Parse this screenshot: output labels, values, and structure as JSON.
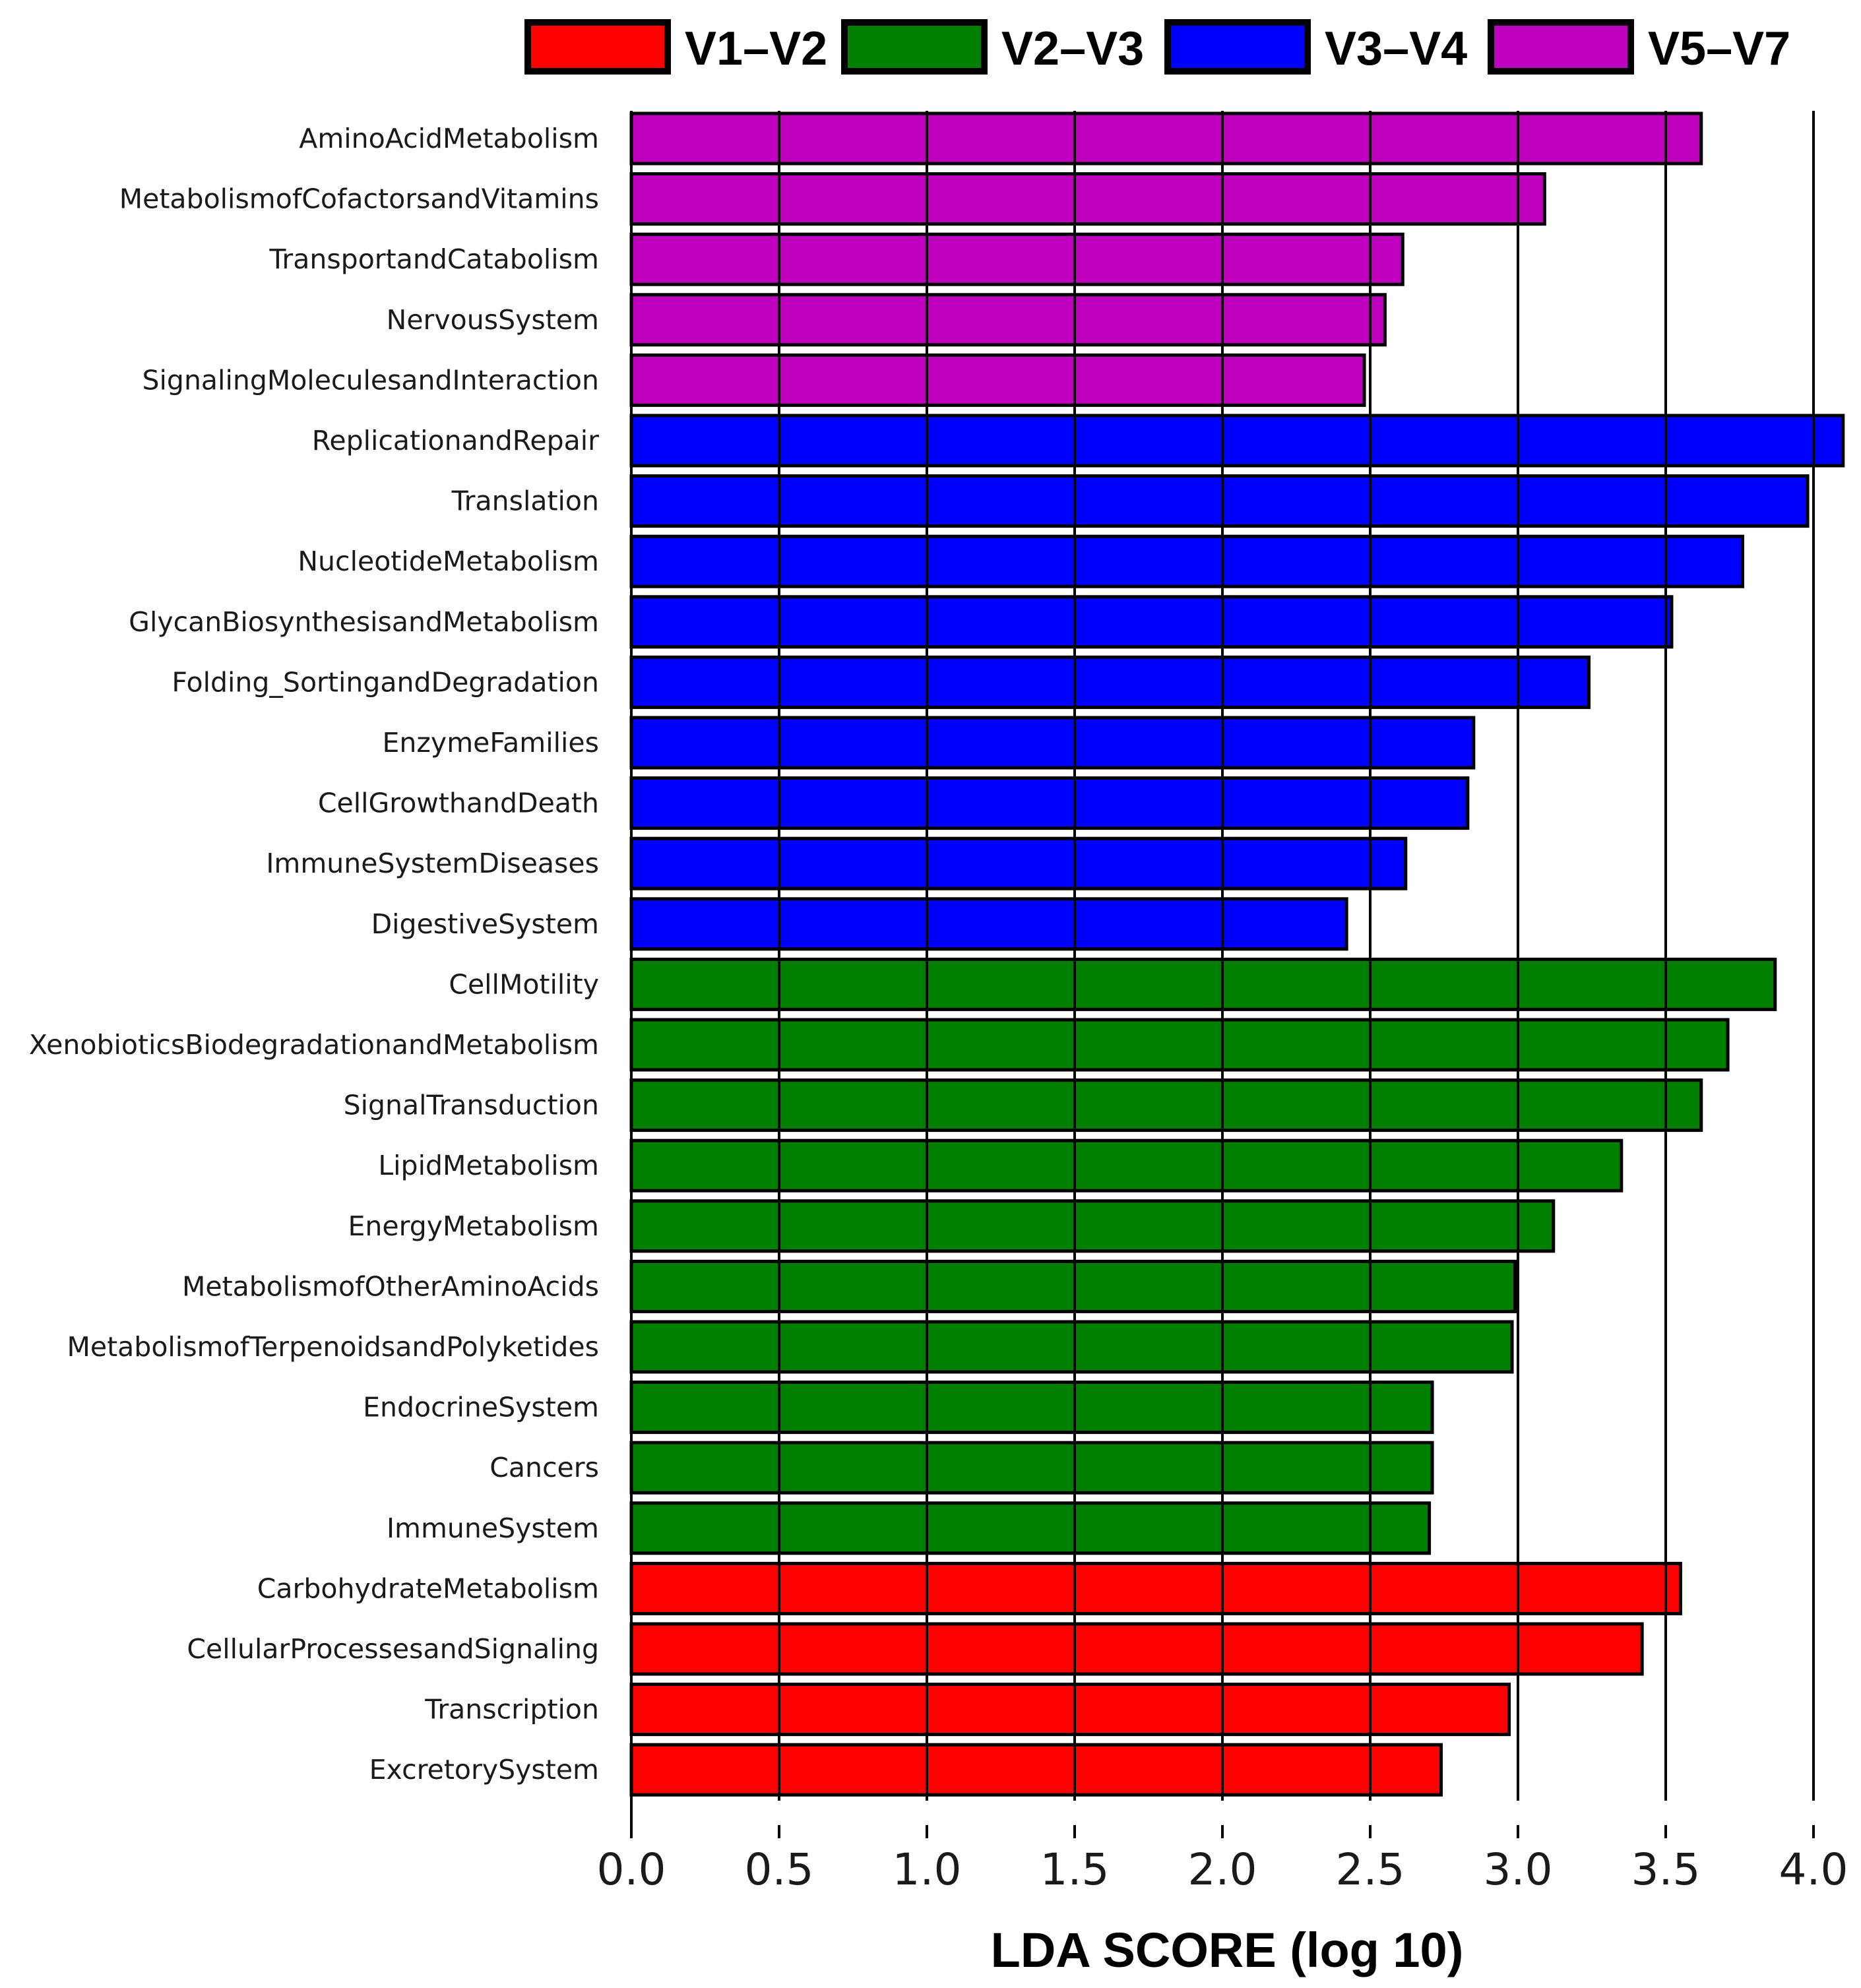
{
  "chart_data": {
    "type": "bar",
    "orientation": "horizontal",
    "title": "",
    "xlabel": "LDA SCORE (log 10)",
    "ylabel": "",
    "xlim": [
      0,
      4.1
    ],
    "xticks": [
      "0.0",
      "0.5",
      "1.0",
      "1.5",
      "2.0",
      "2.5",
      "3.0",
      "3.5",
      "4.0"
    ],
    "grid": "vertical",
    "legend_position": "top",
    "legend": [
      {
        "name": "V1–V2",
        "color": "#ff0000"
      },
      {
        "name": "V2–V3",
        "color": "#007f00"
      },
      {
        "name": "V3–V4",
        "color": "#0000ff"
      },
      {
        "name": "V5–V7",
        "color": "#bf00bf"
      }
    ],
    "bars": [
      {
        "label": "AminoAcidMetabolism",
        "value": 3.62,
        "group": "V5–V7"
      },
      {
        "label": "MetabolismofCofactorsandVitamins",
        "value": 3.09,
        "group": "V5–V7"
      },
      {
        "label": "TransportandCatabolism",
        "value": 2.61,
        "group": "V5–V7"
      },
      {
        "label": "NervousSystem",
        "value": 2.55,
        "group": "V5–V7"
      },
      {
        "label": "SignalingMoleculesandInteraction",
        "value": 2.48,
        "group": "V5–V7"
      },
      {
        "label": "ReplicationandRepair",
        "value": 4.1,
        "group": "V3–V4"
      },
      {
        "label": "Translation",
        "value": 3.98,
        "group": "V3–V4"
      },
      {
        "label": "NucleotideMetabolism",
        "value": 3.76,
        "group": "V3–V4"
      },
      {
        "label": "GlycanBiosynthesisandMetabolism",
        "value": 3.52,
        "group": "V3–V4"
      },
      {
        "label": "Folding_SortingandDegradation",
        "value": 3.24,
        "group": "V3–V4"
      },
      {
        "label": "EnzymeFamilies",
        "value": 2.85,
        "group": "V3–V4"
      },
      {
        "label": "CellGrowthandDeath",
        "value": 2.83,
        "group": "V3–V4"
      },
      {
        "label": "ImmuneSystemDiseases",
        "value": 2.62,
        "group": "V3–V4"
      },
      {
        "label": "DigestiveSystem",
        "value": 2.42,
        "group": "V3–V4"
      },
      {
        "label": "CellMotility",
        "value": 3.87,
        "group": "V2–V3"
      },
      {
        "label": "XenobioticsBiodegradationandMetabolism",
        "value": 3.71,
        "group": "V2–V3"
      },
      {
        "label": "SignalTransduction",
        "value": 3.62,
        "group": "V2–V3"
      },
      {
        "label": "LipidMetabolism",
        "value": 3.35,
        "group": "V2–V3"
      },
      {
        "label": "EnergyMetabolism",
        "value": 3.12,
        "group": "V2–V3"
      },
      {
        "label": "MetabolismofOtherAminoAcids",
        "value": 2.99,
        "group": "V2–V3"
      },
      {
        "label": "MetabolismofTerpenoidsandPolyketides",
        "value": 2.98,
        "group": "V2–V3"
      },
      {
        "label": "EndocrineSystem",
        "value": 2.71,
        "group": "V2–V3"
      },
      {
        "label": "Cancers",
        "value": 2.71,
        "group": "V2–V3"
      },
      {
        "label": "ImmuneSystem",
        "value": 2.7,
        "group": "V2–V3"
      },
      {
        "label": "CarbohydrateMetabolism",
        "value": 3.55,
        "group": "V1–V2"
      },
      {
        "label": "CellularProcessesandSignaling",
        "value": 3.42,
        "group": "V1–V2"
      },
      {
        "label": "Transcription",
        "value": 2.97,
        "group": "V1–V2"
      },
      {
        "label": "ExcretorySystem",
        "value": 2.74,
        "group": "V1–V2"
      }
    ]
  }
}
